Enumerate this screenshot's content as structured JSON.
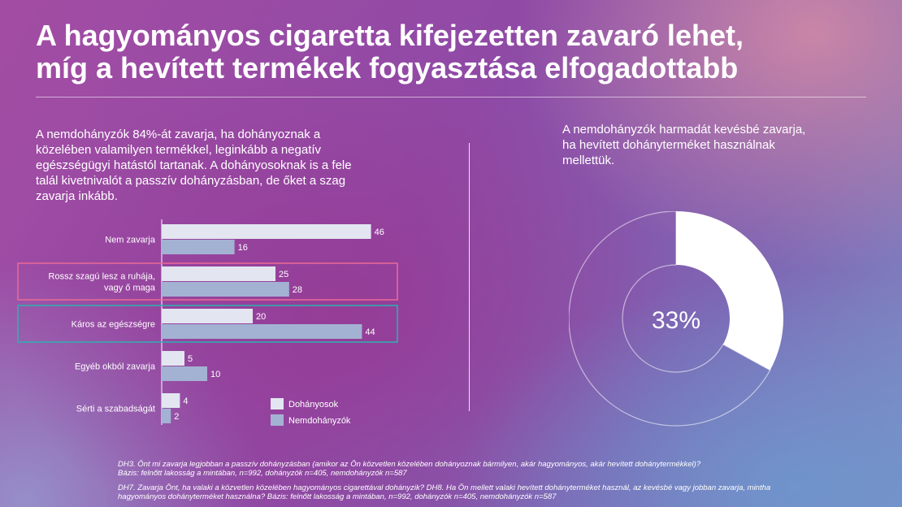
{
  "header": {
    "title_line1": "A hagyományos cigaretta kifejezetten zavaró lehet,",
    "title_line2": "míg a hevített termékek fogyasztása elfogadottabb"
  },
  "left_text": "A nemdohányzók 84%-át zavarja, ha dohányoznak a közelében valamilyen termékkel, leginkább a negatív egészségügyi hatástól tartanak. A dohányosoknak is a fele talál kivetnivalót a passzív dohányzásban, de őket a szag zavarja inkább.",
  "right_text": "A nemdohányzók harmadát kevésbé zavarja,  ha hevített dohányterméket használnak mellettük.",
  "chart_data": [
    {
      "type": "bar",
      "orientation": "horizontal",
      "categories": [
        [
          "Nem zavarja"
        ],
        [
          "Rossz szagú lesz a ruhája,",
          "vagy ő maga"
        ],
        [
          "Káros az egészségre"
        ],
        [
          "Egyéb okból zavarja"
        ],
        [
          "Sérti a szabadságát"
        ]
      ],
      "series": [
        {
          "name": "Dohányosok",
          "values": [
            46,
            25,
            20,
            5,
            4
          ],
          "color": "#e3e6f0"
        },
        {
          "name": "Nemdohányzók",
          "values": [
            16,
            28,
            44,
            10,
            2
          ],
          "color": "#a3b2d3"
        }
      ],
      "highlights": [
        {
          "category_index": 1,
          "color": "#ec6a96"
        },
        {
          "category_index": 2,
          "color": "#2ab3b0"
        }
      ],
      "legend_position": "bottom-right",
      "grid": false
    },
    {
      "type": "pie",
      "style": "donut",
      "values": [
        33,
        67
      ],
      "colors": [
        "#ffffff",
        "rgba(255,255,255,0.55)"
      ],
      "center_label": "33%"
    }
  ],
  "footnotes": {
    "q1": "DH3. Önt mi zavarja legjobban a passzív dohányzásban (amikor az Ön közvetlen közelében dohányoznak bármilyen, akár hagyományos, akár hevített dohánytermékkel)?",
    "q1_base": "Bázis: felnőtt lakosság a mintában, n=992, dohányzók n=405, nemdohányzók n=587",
    "q2_line1": "DH7. Zavarja Önt, ha valaki a közvetlen közelében hagyományos cigarettával dohányzik? DH8. Ha Ön mellett valaki hevített dohányterméket használ, az kevésbé vagy jobban zavarja, mintha",
    "q2_line2": "hagyományos dohányterméket használna? Bázis: felnőtt lakosság a mintában, n=992, dohányzók n=405, nemdohányzók n=587"
  }
}
